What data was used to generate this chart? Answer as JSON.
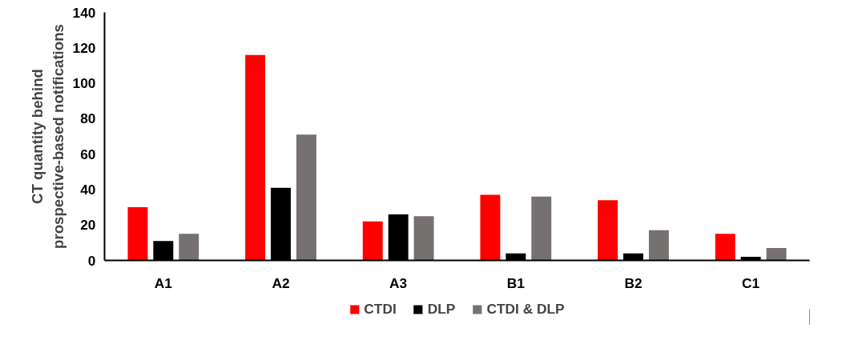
{
  "chart_data": {
    "type": "bar",
    "ylabel": "CT quantity behind\nprospective-based notifications",
    "categories": [
      "A1",
      "A2",
      "A3",
      "B1",
      "B2",
      "C1"
    ],
    "series": [
      {
        "name": "CTDI",
        "color": "#ff0000",
        "values": [
          30,
          116,
          22,
          37,
          34,
          15
        ]
      },
      {
        "name": "DLP",
        "color": "#000000",
        "values": [
          11,
          41,
          26,
          4,
          4,
          2
        ]
      },
      {
        "name": "CTDI & DLP",
        "color": "#767171",
        "values": [
          15,
          71,
          25,
          36,
          17,
          7
        ]
      }
    ],
    "ylim": [
      0,
      140
    ],
    "yticks": [
      0,
      20,
      40,
      60,
      80,
      100,
      120,
      140
    ],
    "grid": false,
    "legend": "bottom"
  }
}
